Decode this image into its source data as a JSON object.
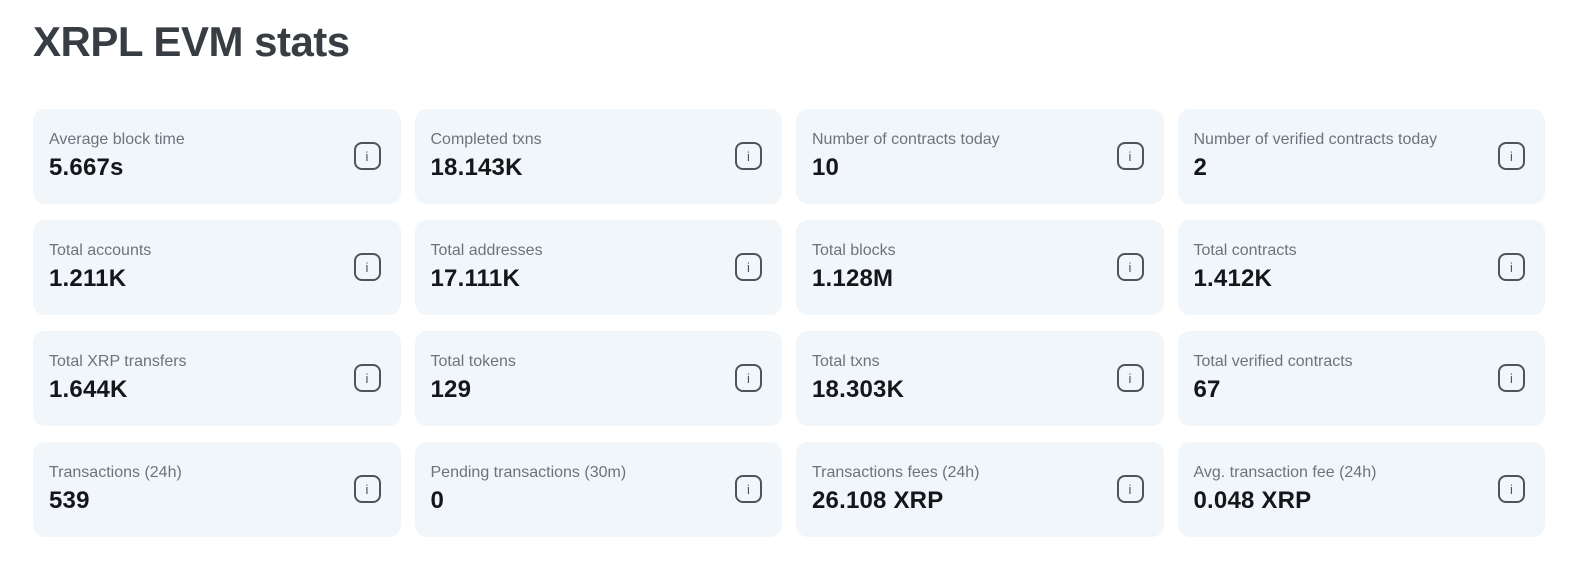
{
  "page": {
    "title": "XRPL EVM stats"
  },
  "icons": {
    "info_glyph": "i"
  },
  "colors": {
    "card_background": "#f1f6fa",
    "title_text": "#383d43",
    "label_text": "#6b737d",
    "value_text": "#14161a",
    "info_icon": "#4e545b"
  },
  "cards": [
    {
      "label": "Average block time",
      "value": "5.667s"
    },
    {
      "label": "Completed txns",
      "value": "18.143K"
    },
    {
      "label": "Number of contracts today",
      "value": "10"
    },
    {
      "label": "Number of verified contracts today",
      "value": "2"
    },
    {
      "label": "Total accounts",
      "value": "1.211K"
    },
    {
      "label": "Total addresses",
      "value": "17.111K"
    },
    {
      "label": "Total blocks",
      "value": "1.128M"
    },
    {
      "label": "Total contracts",
      "value": "1.412K"
    },
    {
      "label": "Total XRP transfers",
      "value": "1.644K"
    },
    {
      "label": "Total tokens",
      "value": "129"
    },
    {
      "label": "Total txns",
      "value": "18.303K"
    },
    {
      "label": "Total verified contracts",
      "value": "67"
    },
    {
      "label": "Transactions (24h)",
      "value": "539"
    },
    {
      "label": "Pending transactions (30m)",
      "value": "0"
    },
    {
      "label": "Transactions fees (24h)",
      "value": "26.108 XRP"
    },
    {
      "label": "Avg. transaction fee (24h)",
      "value": "0.048 XRP"
    }
  ]
}
